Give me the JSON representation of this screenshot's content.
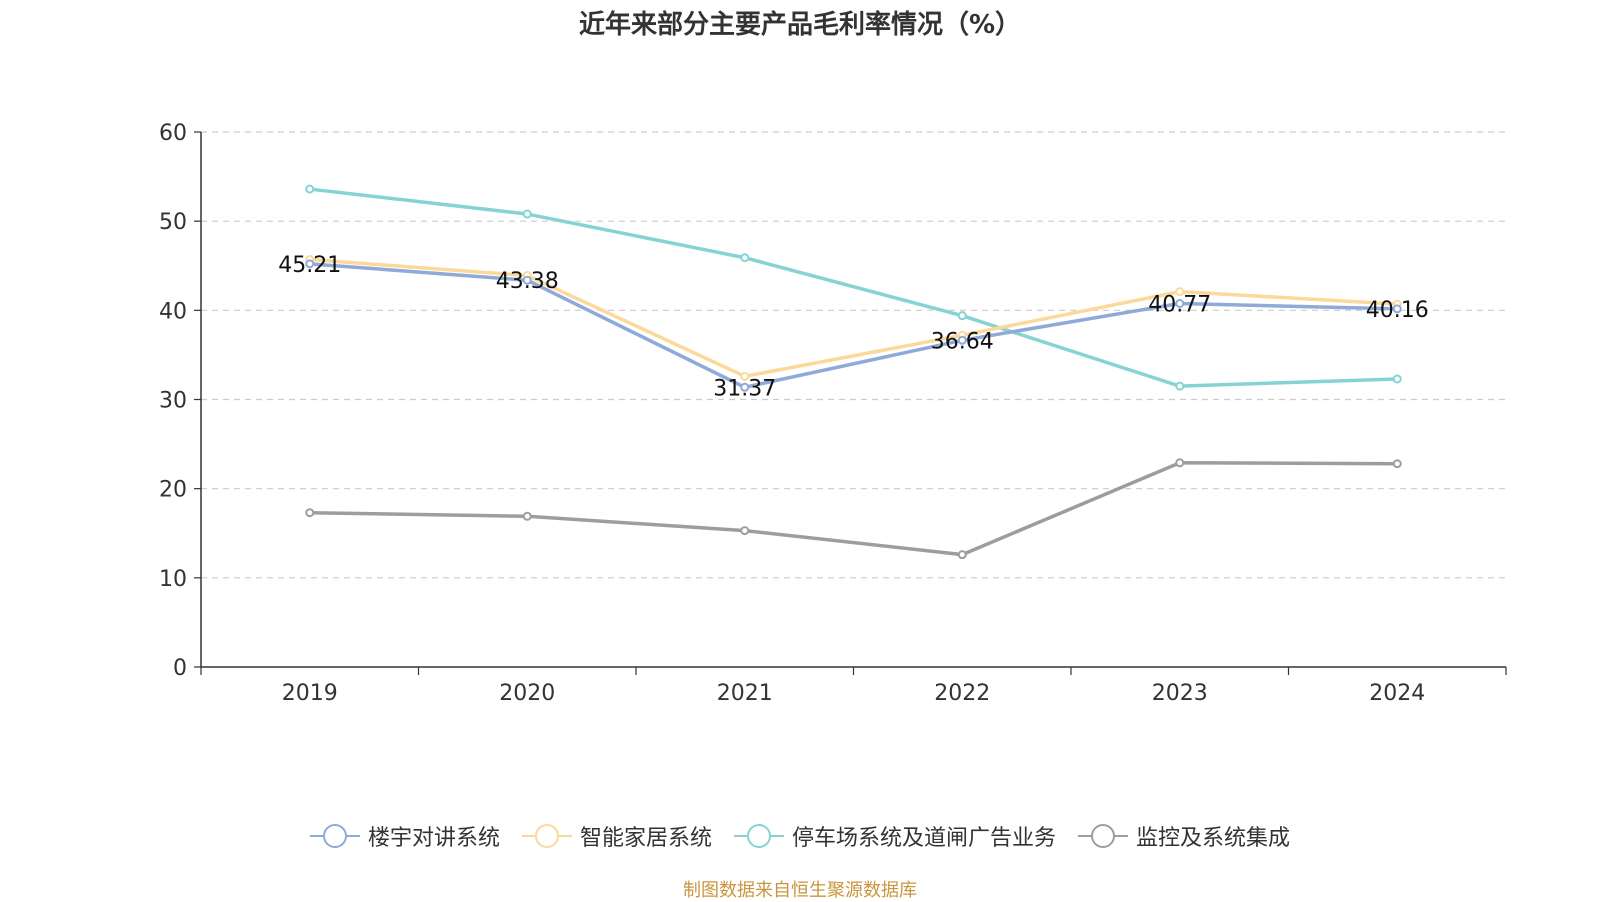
{
  "chart_data": {
    "type": "line",
    "title": "近年来部分主要产品毛利率情况（%）",
    "categories": [
      "2019",
      "2020",
      "2021",
      "2022",
      "2023",
      "2024"
    ],
    "ylim": [
      0,
      60
    ],
    "yticks": [
      0,
      10,
      20,
      30,
      40,
      50,
      60
    ],
    "grid": true,
    "legend_position": "bottom",
    "series": [
      {
        "name": "楼宇对讲系统",
        "color": "#8eaad8",
        "values": [
          45.21,
          43.38,
          31.37,
          36.64,
          40.77,
          40.16
        ],
        "labels": [
          "45.21",
          "43.38",
          "31.37",
          "36.64",
          "40.77",
          "40.16"
        ]
      },
      {
        "name": "智能家居系统",
        "color": "#fbd99b",
        "values": [
          45.7,
          43.9,
          32.6,
          37.2,
          42.1,
          40.7
        ]
      },
      {
        "name": "停车场系统及道闸广告业务",
        "color": "#86d3d4",
        "values": [
          53.6,
          50.8,
          45.9,
          39.4,
          31.5,
          32.3
        ]
      },
      {
        "name": "监控及系统集成",
        "color": "#9d9d9d",
        "values": [
          17.3,
          16.9,
          15.3,
          12.6,
          22.9,
          22.8
        ]
      }
    ]
  },
  "source_text": "制图数据来自恒生聚源数据库",
  "source_color": "#c8963e"
}
